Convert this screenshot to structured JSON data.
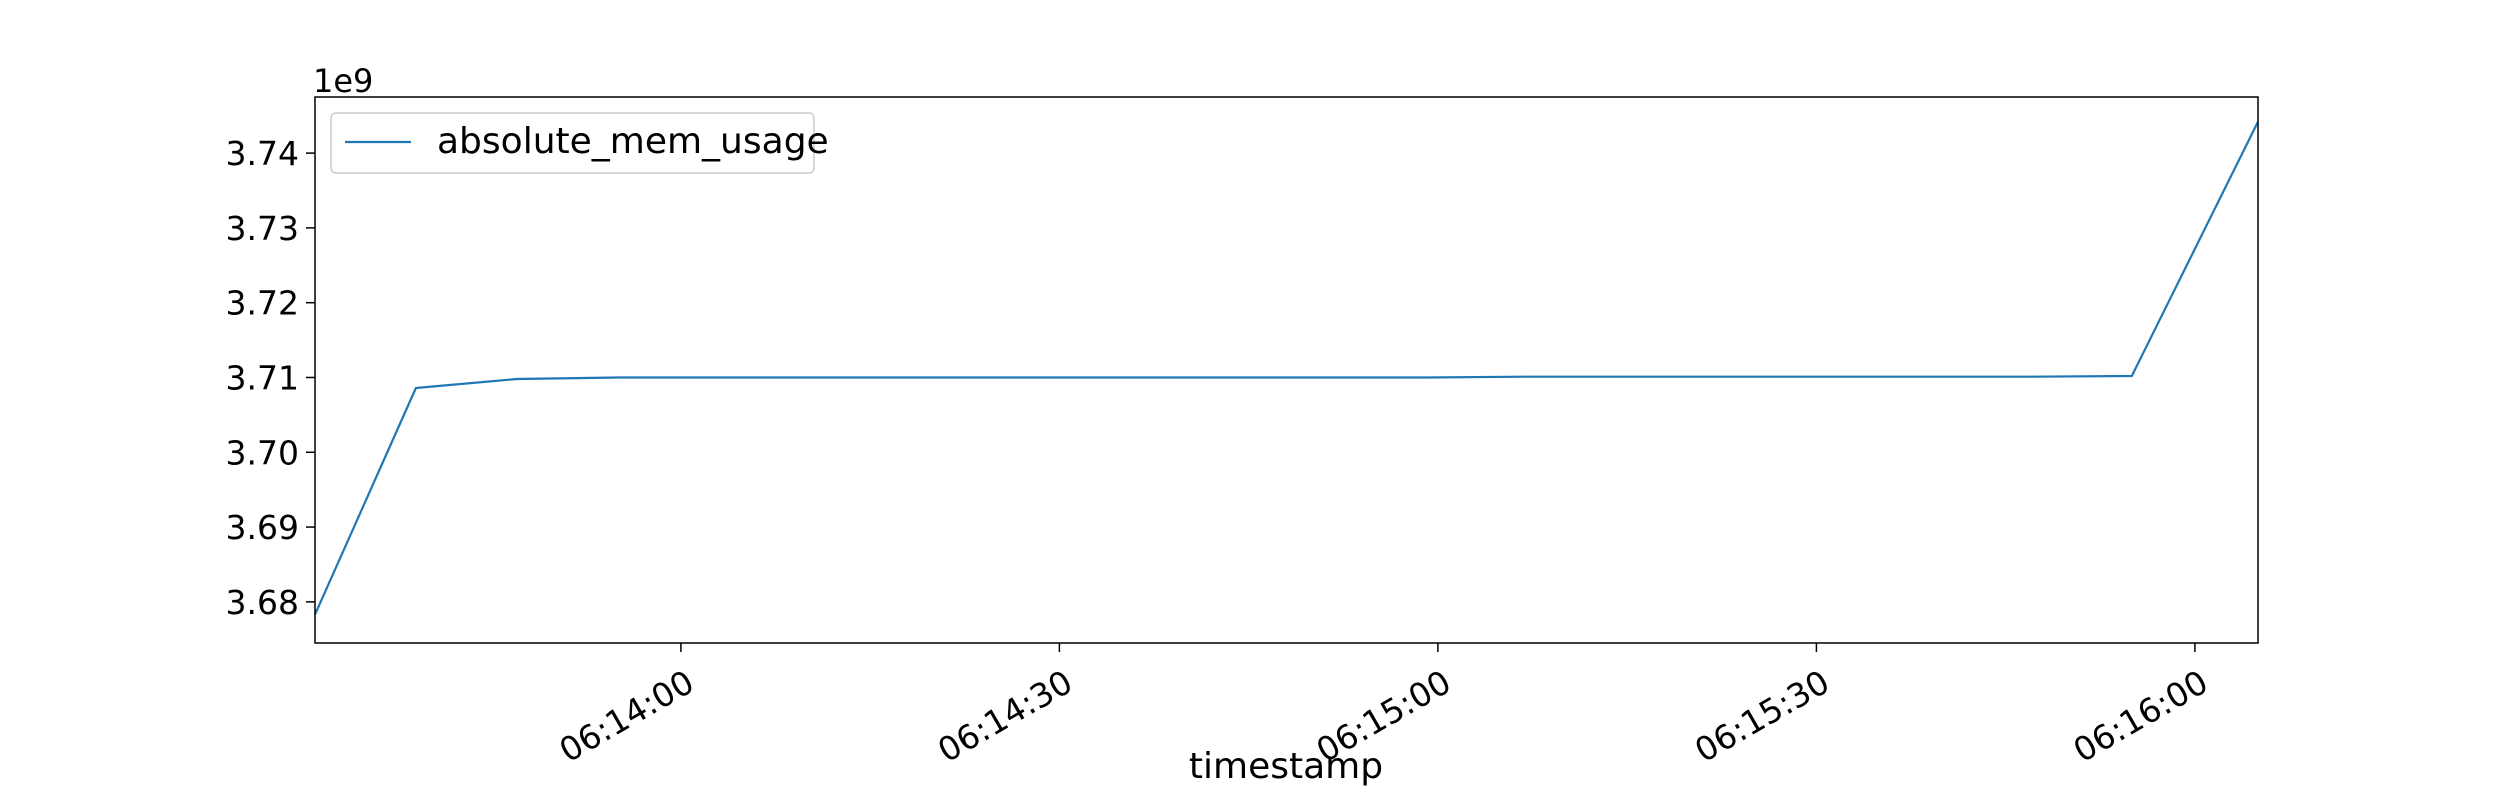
{
  "chart_data": {
    "type": "line",
    "title": "",
    "xlabel": "timestamp",
    "ylabel": "",
    "y_offset_label": "1e9",
    "y_scale": 1000000000,
    "x_axis_kind": "time",
    "xlim": [
      "06:13:31",
      "06:16:05"
    ],
    "ylim": [
      3.6745,
      3.7475
    ],
    "x_ticks": [
      "06:14:00",
      "06:14:30",
      "06:15:00",
      "06:15:30",
      "06:16:00"
    ],
    "y_ticks": [
      "3.68",
      "3.69",
      "3.70",
      "3.71",
      "3.72",
      "3.73",
      "3.74"
    ],
    "y_tick_values": [
      3.68,
      3.69,
      3.7,
      3.71,
      3.72,
      3.73,
      3.74
    ],
    "grid": false,
    "legend_position": "top-left",
    "series": [
      {
        "name": "absolute_mem_usage",
        "color": "#1f77b4",
        "x": [
          "06:13:31",
          "06:13:39",
          "06:13:47",
          "06:13:55",
          "06:14:03",
          "06:14:11",
          "06:14:19",
          "06:14:27",
          "06:14:35",
          "06:14:43",
          "06:14:51",
          "06:14:59",
          "06:15:07",
          "06:15:15",
          "06:15:23",
          "06:15:31",
          "06:15:39",
          "06:15:47",
          "06:15:55",
          "06:16:05"
        ],
        "y": [
          3.6783,
          3.7086,
          3.7098,
          3.71,
          3.71,
          3.71,
          3.71,
          3.71,
          3.71,
          3.71,
          3.71,
          3.71,
          3.7101,
          3.7101,
          3.7101,
          3.7101,
          3.7101,
          3.7101,
          3.7102,
          3.7442
        ]
      }
    ]
  }
}
